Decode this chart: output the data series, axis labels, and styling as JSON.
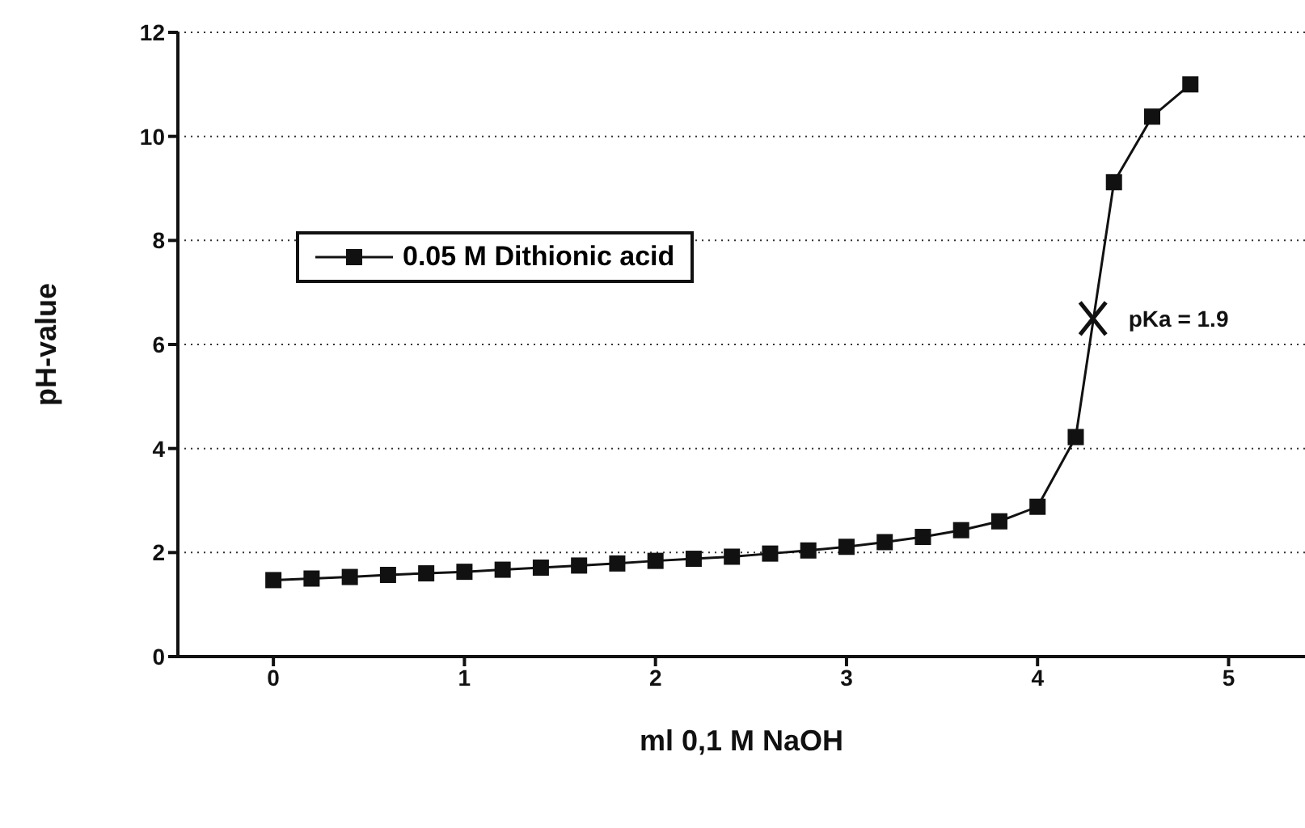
{
  "chart_data": {
    "type": "line",
    "xlabel": "ml 0,1 M NaOH",
    "ylabel": "pH-value",
    "x": [
      0,
      0.2,
      0.4,
      0.6,
      0.8,
      1.0,
      1.2,
      1.4,
      1.6,
      1.8,
      2.0,
      2.2,
      2.4,
      2.6,
      2.8,
      3.0,
      3.2,
      3.4,
      3.6,
      3.8,
      4.0,
      4.2,
      4.4,
      4.6,
      4.8
    ],
    "series": [
      {
        "name": "0.05 M Dithionic acid",
        "color": "#111111",
        "values": [
          1.47,
          1.5,
          1.53,
          1.57,
          1.6,
          1.63,
          1.67,
          1.71,
          1.75,
          1.79,
          1.84,
          1.88,
          1.92,
          1.98,
          2.04,
          2.11,
          2.2,
          2.3,
          2.43,
          2.6,
          2.88,
          4.22,
          9.12,
          10.38,
          11.0
        ]
      }
    ],
    "xlim": [
      -0.5,
      5.4
    ],
    "xticks": [
      0,
      1,
      2,
      3,
      4,
      5
    ],
    "ylim": [
      0,
      12
    ],
    "yticks": [
      0,
      2,
      4,
      6,
      8,
      10,
      12
    ],
    "grid": "y",
    "legend": "top left",
    "marker": "square",
    "line_style": "solid",
    "annotations": [
      {
        "text": "pKa = 1.9",
        "x": 4.29,
        "y": 6.5
      }
    ]
  }
}
